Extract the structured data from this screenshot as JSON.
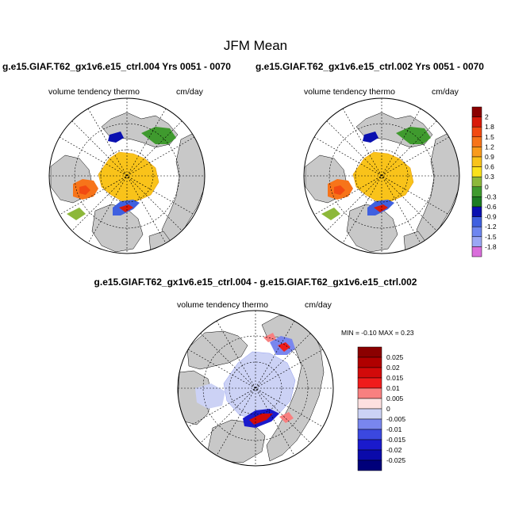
{
  "main_title": "JFM Mean",
  "panels": [
    {
      "case_title": "g.e15.GIAF.T62_gx1v6.e15_ctrl.004  Yrs 0051 - 0070",
      "variable": "volume tendency thermo",
      "units": "cm/day"
    },
    {
      "case_title": "g.e15.GIAF.T62_gx1v6.e15_ctrl.002  Yrs 0051 - 0070",
      "variable": "volume tendency thermo",
      "units": "cm/day"
    },
    {
      "case_title": "g.e15.GIAF.T62_gx1v6.e15_ctrl.004 - g.e15.GIAF.T62_gx1v6.e15_ctrl.002",
      "variable": "volume tendency thermo",
      "units": "cm/day",
      "minmax": "MIN =  -0.10 MAX =   0.23"
    }
  ],
  "chart_data": [
    {
      "type": "heatmap",
      "projection": "north-polar-stereographic",
      "colorbar": {
        "labels": [
          "2",
          "1.8",
          "1.5",
          "1.2",
          "0.9",
          "0.6",
          "0.3",
          "0",
          "-0.3",
          "-0.6",
          "-0.9",
          "-1.2",
          "-1.5",
          "-1.8"
        ],
        "colors": [
          "#8B0000",
          "#D91A0A",
          "#F24A12",
          "#F7741A",
          "#F99B1C",
          "#F9C31A",
          "#FBE21B",
          "#8DB83A",
          "#3F9A2E",
          "#1C7C22",
          "#0A10B0",
          "#3F60E0",
          "#6E86F0",
          "#9AA7F5",
          "#DA6EDC"
        ]
      }
    },
    {
      "type": "heatmap",
      "projection": "north-polar-stereographic"
    },
    {
      "type": "heatmap",
      "projection": "north-polar-stereographic",
      "min": -0.1,
      "max": 0.23,
      "colorbar": {
        "labels": [
          "0.025",
          "0.02",
          "0.015",
          "0.01",
          "0.005",
          "0",
          "-0.005",
          "-0.01",
          "-0.015",
          "-0.02",
          "-0.025"
        ],
        "colors": [
          "#8B0000",
          "#B00000",
          "#D20A0A",
          "#F01C1C",
          "#F88080",
          "#FDE0E0",
          "#CCD2F5",
          "#7986EE",
          "#3B48E0",
          "#1A1ACC",
          "#0A0AAA",
          "#00007A"
        ]
      }
    }
  ]
}
